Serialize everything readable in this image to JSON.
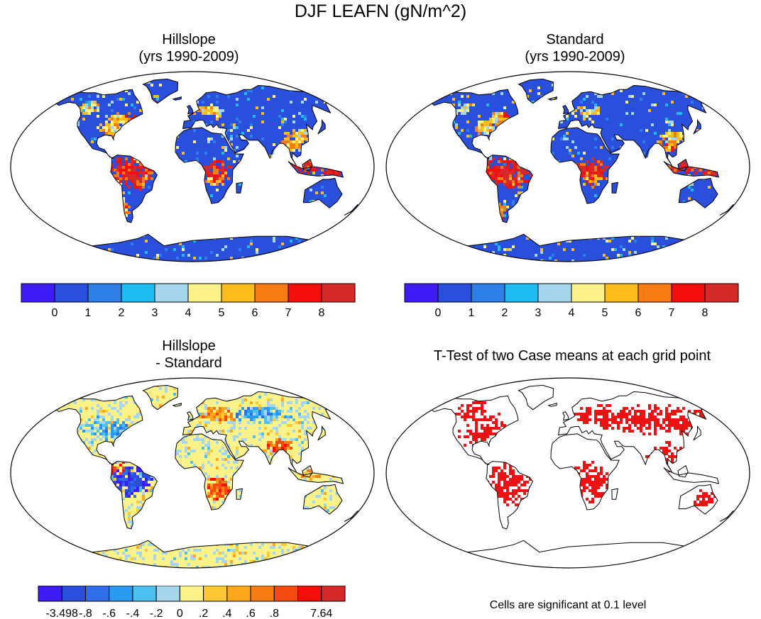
{
  "title": "DJF LEAFN (gN/m^2)",
  "panels": [
    {
      "id": "hillslope",
      "title_lines": [
        "Hillslope",
        "(yrs 1990-2009)"
      ],
      "palette": "abs"
    },
    {
      "id": "standard",
      "title_lines": [
        "Standard",
        "(yrs 1990-2009)"
      ],
      "palette": "abs"
    },
    {
      "id": "difference",
      "title_lines": [
        "Hillslope",
        "- Standard"
      ],
      "palette": "diff"
    },
    {
      "id": "ttest",
      "title_lines": [
        "T-Test of two Case means at each grid point"
      ],
      "palette": "sig"
    }
  ],
  "colorbars": {
    "abs": {
      "colors": [
        "#3f1cf5",
        "#2a4fdc",
        "#2f7fe8",
        "#1fbcf2",
        "#a6d6ee",
        "#fbf28a",
        "#fcbd1c",
        "#f87c14",
        "#f40f0d",
        "#d62a2a"
      ],
      "labels": [
        "0",
        "1",
        "2",
        "3",
        "4",
        "5",
        "6",
        "7",
        "8"
      ]
    },
    "diff": {
      "colors": [
        "#3f1cf5",
        "#2a4fdc",
        "#2f6ee8",
        "#2a9af0",
        "#4cc0ee",
        "#a6d6ee",
        "#fbf28a",
        "#fcc834",
        "#fca71c",
        "#f87c14",
        "#f44a10",
        "#f40f0d",
        "#d62a2a"
      ],
      "labels": [
        "-3.498",
        "-.8",
        "-.6",
        "-.4",
        "-.2",
        "0",
        ".2",
        ".4",
        ".6",
        ".8",
        "7.64"
      ]
    }
  },
  "significance_color": "#ee1111",
  "land_base_colors": {
    "abs": "#2a4fdc",
    "diff": "#fbf28a"
  },
  "footnote": "Cells are significant at 0.1 level"
}
